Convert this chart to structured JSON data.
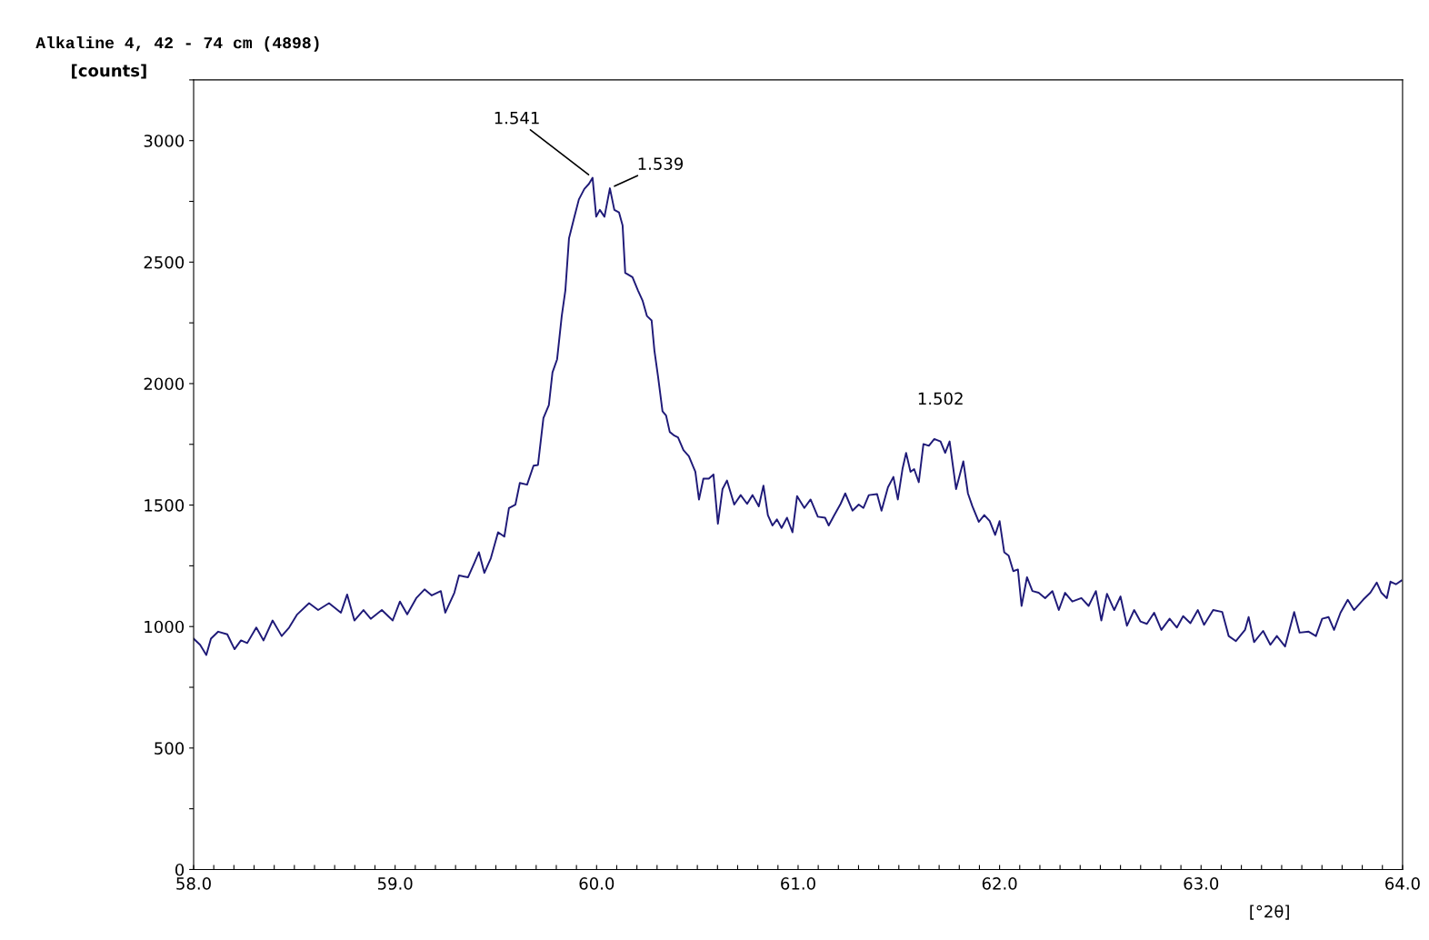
{
  "chart_data": {
    "type": "line",
    "title": "Alkaline 4, 42 - 74 cm (4898)",
    "ylabel": "[counts]",
    "xlabel": "[°2θ]",
    "xlim": [
      58,
      64
    ],
    "ylim": [
      0,
      3250
    ],
    "xticks": [
      {
        "value": 58,
        "label": "58.0"
      },
      {
        "value": 58.1,
        "label": null
      },
      {
        "value": 58.2,
        "label": null
      },
      {
        "value": 58.3,
        "label": null
      },
      {
        "value": 58.4,
        "label": null
      },
      {
        "value": 58.5,
        "label": null
      },
      {
        "value": 58.6,
        "label": null
      },
      {
        "value": 58.7,
        "label": null
      },
      {
        "value": 58.8,
        "label": null
      },
      {
        "value": 58.9,
        "label": null
      },
      {
        "value": 59,
        "label": "59.0"
      },
      {
        "value": 59.1,
        "label": null
      },
      {
        "value": 59.2,
        "label": null
      },
      {
        "value": 59.3,
        "label": null
      },
      {
        "value": 59.4,
        "label": null
      },
      {
        "value": 59.5,
        "label": null
      },
      {
        "value": 59.6,
        "label": null
      },
      {
        "value": 59.7,
        "label": null
      },
      {
        "value": 59.8,
        "label": null
      },
      {
        "value": 59.9,
        "label": null
      },
      {
        "value": 60,
        "label": "60.0"
      },
      {
        "value": 60.1,
        "label": null
      },
      {
        "value": 60.2,
        "label": null
      },
      {
        "value": 60.3,
        "label": null
      },
      {
        "value": 60.4,
        "label": null
      },
      {
        "value": 60.5,
        "label": null
      },
      {
        "value": 60.6,
        "label": null
      },
      {
        "value": 60.7,
        "label": null
      },
      {
        "value": 60.8,
        "label": null
      },
      {
        "value": 60.9,
        "label": null
      },
      {
        "value": 61,
        "label": "61.0"
      },
      {
        "value": 61.1,
        "label": null
      },
      {
        "value": 61.2,
        "label": null
      },
      {
        "value": 61.3,
        "label": null
      },
      {
        "value": 61.4,
        "label": null
      },
      {
        "value": 61.5,
        "label": null
      },
      {
        "value": 61.6,
        "label": null
      },
      {
        "value": 61.7,
        "label": null
      },
      {
        "value": 61.8,
        "label": null
      },
      {
        "value": 61.9,
        "label": null
      },
      {
        "value": 62,
        "label": "62.0"
      },
      {
        "value": 62.1,
        "label": null
      },
      {
        "value": 62.2,
        "label": null
      },
      {
        "value": 62.3,
        "label": null
      },
      {
        "value": 62.4,
        "label": null
      },
      {
        "value": 62.5,
        "label": null
      },
      {
        "value": 62.6,
        "label": null
      },
      {
        "value": 62.7,
        "label": null
      },
      {
        "value": 62.8,
        "label": null
      },
      {
        "value": 62.9,
        "label": null
      },
      {
        "value": 63,
        "label": "63.0"
      },
      {
        "value": 63.1,
        "label": null
      },
      {
        "value": 63.2,
        "label": null
      },
      {
        "value": 63.3,
        "label": null
      },
      {
        "value": 63.4,
        "label": null
      },
      {
        "value": 63.5,
        "label": null
      },
      {
        "value": 63.6,
        "label": null
      },
      {
        "value": 63.7,
        "label": null
      },
      {
        "value": 63.8,
        "label": null
      },
      {
        "value": 63.9,
        "label": null
      },
      {
        "value": 64,
        "label": "64.0"
      }
    ],
    "yticks": [
      0,
      {
        "value": 250,
        "label": null
      },
      500,
      {
        "value": 750,
        "label": null
      },
      1000,
      {
        "value": 1250,
        "label": null
      },
      1500,
      {
        "value": 1750,
        "label": null
      },
      2000,
      {
        "value": 2250,
        "label": null
      },
      2500,
      {
        "value": 2750,
        "label": null
      },
      3000,
      {
        "value": 3250,
        "label": null
      }
    ],
    "grid": false,
    "legend": false,
    "marker": "none",
    "line_style": "solid",
    "annotations": [
      {
        "text": "1.541",
        "x": 59.98,
        "y": 2847
      },
      {
        "text": "1.539",
        "x": 60.066,
        "y": 2804
      },
      {
        "text": "1.502",
        "x": 61.707,
        "y": 1770
      }
    ],
    "series": [
      {
        "color": "#1f1a78",
        "x": [
          58.0,
          58.032,
          58.063,
          58.086,
          58.122,
          58.167,
          58.203,
          58.235,
          58.266,
          58.311,
          58.347,
          58.392,
          58.437,
          58.474,
          58.514,
          58.573,
          58.618,
          58.672,
          58.731,
          58.762,
          58.798,
          58.843,
          58.879,
          58.934,
          58.988,
          59.024,
          59.06,
          59.105,
          59.146,
          59.182,
          59.227,
          59.249,
          59.294,
          59.317,
          59.362,
          59.394,
          59.416,
          59.443,
          59.475,
          59.511,
          59.542,
          59.565,
          59.597,
          59.619,
          59.655,
          59.687,
          59.709,
          59.736,
          59.763,
          59.781,
          59.804,
          59.827,
          59.845,
          59.863,
          59.89,
          59.912,
          59.939,
          59.962,
          59.98,
          59.998,
          60.016,
          60.039,
          60.066,
          60.088,
          60.111,
          60.129,
          60.142,
          60.178,
          60.205,
          60.228,
          60.25,
          60.273,
          60.287,
          60.305,
          60.327,
          60.345,
          60.363,
          60.386,
          60.404,
          60.431,
          60.458,
          60.49,
          60.508,
          60.53,
          60.557,
          60.58,
          60.602,
          60.625,
          60.647,
          60.683,
          60.715,
          60.747,
          60.774,
          60.805,
          60.828,
          60.85,
          60.873,
          60.895,
          60.918,
          60.945,
          60.972,
          60.995,
          61.031,
          61.062,
          61.098,
          61.134,
          61.152,
          61.18,
          61.211,
          61.234,
          61.27,
          61.301,
          61.324,
          61.351,
          61.392,
          61.414,
          61.446,
          61.473,
          61.495,
          61.518,
          61.536,
          61.558,
          61.576,
          61.599,
          61.622,
          61.649,
          61.676,
          61.707,
          61.73,
          61.752,
          61.784,
          61.82,
          61.843,
          61.865,
          61.897,
          61.924,
          61.951,
          61.978,
          62.0,
          62.023,
          62.045,
          62.068,
          62.091,
          62.109,
          62.136,
          62.163,
          62.194,
          62.226,
          62.262,
          62.294,
          62.325,
          62.361,
          62.406,
          62.442,
          62.478,
          62.505,
          62.533,
          62.569,
          62.6,
          62.632,
          62.668,
          62.699,
          62.731,
          62.767,
          62.803,
          62.844,
          62.88,
          62.911,
          62.947,
          62.984,
          63.015,
          63.06,
          63.105,
          63.137,
          63.173,
          63.218,
          63.236,
          63.263,
          63.308,
          63.344,
          63.376,
          63.417,
          63.462,
          63.489,
          63.534,
          63.57,
          63.601,
          63.633,
          63.66,
          63.692,
          63.728,
          63.759,
          63.804,
          63.84,
          63.872,
          63.895,
          63.922,
          63.94,
          63.967,
          63.994
        ],
        "values": [
          950,
          925,
          883,
          950,
          979,
          968,
          907,
          943,
          932,
          996,
          943,
          1025,
          961,
          996,
          1050,
          1096,
          1068,
          1096,
          1057,
          1132,
          1025,
          1068,
          1032,
          1068,
          1025,
          1103,
          1050,
          1117,
          1153,
          1128,
          1146,
          1057,
          1139,
          1210,
          1203,
          1263,
          1306,
          1221,
          1281,
          1388,
          1370,
          1488,
          1502,
          1591,
          1584,
          1662,
          1665,
          1858,
          1911,
          2046,
          2100,
          2278,
          2384,
          2598,
          2687,
          2758,
          2801,
          2822,
          2847,
          2687,
          2715,
          2687,
          2804,
          2715,
          2705,
          2651,
          2456,
          2438,
          2384,
          2342,
          2278,
          2260,
          2135,
          2028,
          1886,
          1868,
          1801,
          1786,
          1779,
          1726,
          1701,
          1637,
          1523,
          1609,
          1609,
          1626,
          1423,
          1566,
          1601,
          1502,
          1541,
          1505,
          1541,
          1495,
          1580,
          1459,
          1416,
          1441,
          1406,
          1448,
          1388,
          1537,
          1488,
          1523,
          1452,
          1448,
          1416,
          1459,
          1505,
          1548,
          1477,
          1502,
          1488,
          1541,
          1545,
          1477,
          1573,
          1616,
          1523,
          1648,
          1715,
          1637,
          1648,
          1594,
          1751,
          1744,
          1772,
          1762,
          1715,
          1762,
          1566,
          1680,
          1548,
          1495,
          1431,
          1459,
          1434,
          1377,
          1434,
          1306,
          1292,
          1228,
          1235,
          1085,
          1203,
          1146,
          1139,
          1117,
          1146,
          1068,
          1139,
          1103,
          1117,
          1085,
          1146,
          1025,
          1135,
          1068,
          1124,
          1003,
          1068,
          1021,
          1011,
          1057,
          986,
          1032,
          996,
          1043,
          1014,
          1068,
          1007,
          1068,
          1060,
          961,
          940,
          986,
          1039,
          936,
          982,
          925,
          961,
          918,
          1060,
          975,
          979,
          961,
          1032,
          1039,
          986,
          1057,
          1110,
          1068,
          1110,
          1139,
          1181,
          1139,
          1117,
          1185,
          1174,
          1189
        ]
      }
    ]
  }
}
